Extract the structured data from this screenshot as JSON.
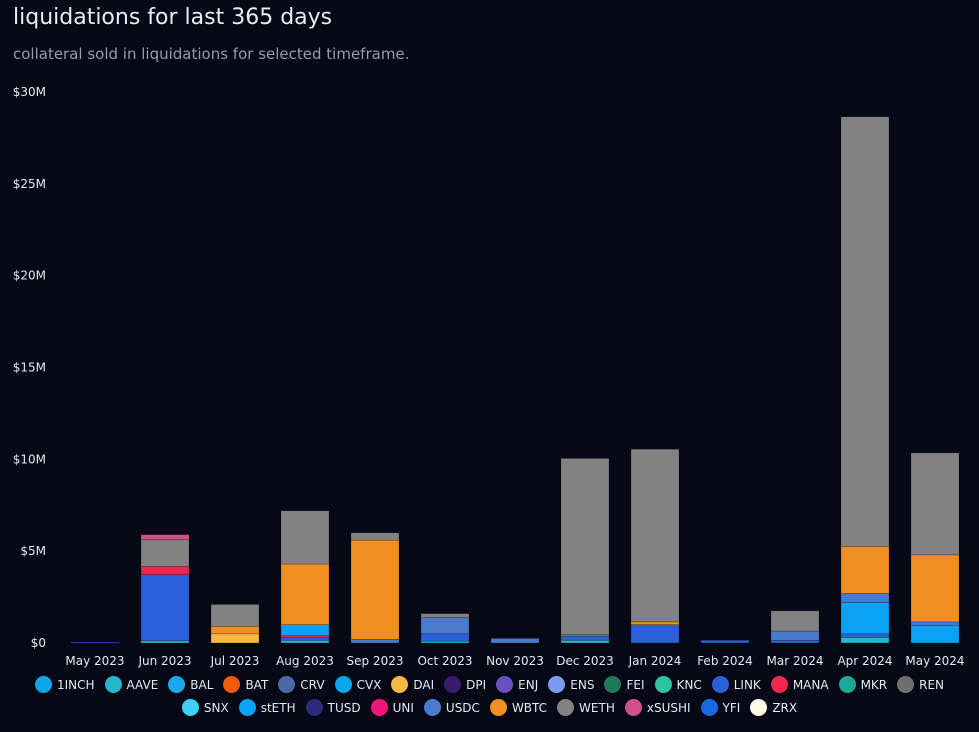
{
  "title": "liquidations for last 365 days",
  "subtitle": "collateral sold in liquidations for selected timeframe.",
  "chart_data": {
    "type": "bar",
    "stacked": true,
    "categories": [
      "May 2023",
      "Jun 2023",
      "Jul 2023",
      "Aug 2023",
      "Sep 2023",
      "Oct 2023",
      "Nov 2023",
      "Dec 2023",
      "Jan 2024",
      "Feb 2024",
      "Mar 2024",
      "Apr 2024",
      "May 2024"
    ],
    "ylim": [
      0,
      30000000
    ],
    "yticks": [
      0,
      5000000,
      10000000,
      15000000,
      20000000,
      25000000,
      30000000
    ],
    "ytick_labels": [
      "$0",
      "$5M",
      "$10M",
      "$15M",
      "$20M",
      "$25M",
      "$30M"
    ],
    "grid": false,
    "legend_position": "bottom",
    "series": [
      {
        "name": "1INCH",
        "color": "#0ea5e9",
        "values": [
          0,
          0,
          0,
          0,
          0,
          0,
          0,
          0,
          0,
          0,
          0,
          0,
          0
        ]
      },
      {
        "name": "AAVE",
        "color": "#22b8c8",
        "values": [
          0,
          120000,
          0,
          150000,
          0,
          100000,
          0,
          150000,
          0,
          0,
          0,
          300000,
          0
        ]
      },
      {
        "name": "BAL",
        "color": "#1aa7ec",
        "values": [
          0,
          0,
          0,
          0,
          0,
          0,
          0,
          0,
          0,
          0,
          0,
          0,
          0
        ]
      },
      {
        "name": "BAT",
        "color": "#f05a0a",
        "values": [
          0,
          0,
          0,
          0,
          0,
          0,
          0,
          0,
          0,
          0,
          0,
          0,
          0
        ]
      },
      {
        "name": "CRV",
        "color": "#4a6aa5",
        "values": [
          0,
          0,
          0,
          0,
          0,
          0,
          0,
          0,
          0,
          0,
          0,
          0,
          0
        ]
      },
      {
        "name": "CVX",
        "color": "#0aa7e8",
        "values": [
          0,
          0,
          0,
          0,
          0,
          0,
          0,
          0,
          0,
          0,
          0,
          0,
          0
        ]
      },
      {
        "name": "DAI",
        "color": "#f5b841",
        "values": [
          0,
          0,
          500000,
          0,
          0,
          0,
          0,
          0,
          0,
          0,
          0,
          0,
          0
        ]
      },
      {
        "name": "DPI",
        "color": "#3a1a6e",
        "values": [
          0,
          0,
          0,
          0,
          0,
          0,
          0,
          0,
          0,
          0,
          0,
          0,
          0
        ]
      },
      {
        "name": "ENJ",
        "color": "#6a4fc2",
        "values": [
          0,
          0,
          0,
          0,
          0,
          0,
          0,
          0,
          0,
          0,
          0,
          0,
          0
        ]
      },
      {
        "name": "ENS",
        "color": "#7a9cf0",
        "values": [
          0,
          0,
          0,
          0,
          0,
          0,
          0,
          0,
          0,
          0,
          0,
          0,
          0
        ]
      },
      {
        "name": "FEI",
        "color": "#1f7a5a",
        "values": [
          0,
          0,
          0,
          0,
          0,
          0,
          0,
          0,
          0,
          0,
          0,
          0,
          0
        ]
      },
      {
        "name": "KNC",
        "color": "#2fc4a0",
        "values": [
          0,
          0,
          0,
          0,
          0,
          0,
          0,
          0,
          0,
          0,
          0,
          0,
          0
        ]
      },
      {
        "name": "LINK",
        "color": "#2b5fd9",
        "values": [
          50000,
          3600000,
          0,
          150000,
          0,
          400000,
          0,
          200000,
          1000000,
          150000,
          150000,
          200000,
          0
        ]
      },
      {
        "name": "MANA",
        "color": "#f0274e",
        "values": [
          0,
          450000,
          0,
          100000,
          0,
          0,
          0,
          0,
          0,
          0,
          0,
          0,
          0
        ]
      },
      {
        "name": "MKR",
        "color": "#1fa896",
        "values": [
          0,
          0,
          0,
          0,
          0,
          0,
          0,
          0,
          0,
          0,
          0,
          0,
          0
        ]
      },
      {
        "name": "REN",
        "color": "#6e6e6e",
        "values": [
          0,
          0,
          0,
          0,
          0,
          0,
          0,
          0,
          0,
          0,
          0,
          0,
          0
        ]
      },
      {
        "name": "SNX",
        "color": "#3fd0f5",
        "values": [
          0,
          0,
          0,
          0,
          0,
          0,
          0,
          0,
          0,
          0,
          0,
          0,
          0
        ]
      },
      {
        "name": "stETH",
        "color": "#0aa2f5",
        "values": [
          0,
          0,
          0,
          600000,
          0,
          0,
          0,
          0,
          0,
          0,
          0,
          1700000,
          950000
        ]
      },
      {
        "name": "TUSD",
        "color": "#2a2a7e",
        "values": [
          0,
          0,
          0,
          0,
          0,
          0,
          0,
          0,
          0,
          0,
          0,
          0,
          0
        ]
      },
      {
        "name": "UNI",
        "color": "#f0157a",
        "values": [
          0,
          0,
          0,
          0,
          0,
          0,
          0,
          0,
          0,
          0,
          0,
          0,
          0
        ]
      },
      {
        "name": "USDC",
        "color": "#4a7ad0",
        "values": [
          0,
          0,
          0,
          0,
          200000,
          900000,
          250000,
          100000,
          0,
          0,
          500000,
          500000,
          200000
        ]
      },
      {
        "name": "WBTC",
        "color": "#f09020",
        "values": [
          0,
          0,
          400000,
          3300000,
          5400000,
          0,
          0,
          0,
          150000,
          0,
          0,
          2550000,
          3650000
        ]
      },
      {
        "name": "WETH",
        "color": "#828282",
        "values": [
          0,
          1450000,
          1200000,
          2900000,
          400000,
          200000,
          0,
          9600000,
          9400000,
          0,
          1100000,
          23400000,
          5550000
        ]
      },
      {
        "name": "xSUSHI",
        "color": "#d0508a",
        "values": [
          0,
          280000,
          0,
          0,
          0,
          0,
          0,
          0,
          0,
          0,
          0,
          0,
          0
        ]
      },
      {
        "name": "YFI",
        "color": "#1a68e0",
        "values": [
          0,
          0,
          0,
          0,
          0,
          0,
          0,
          0,
          0,
          0,
          0,
          0,
          0
        ]
      },
      {
        "name": "ZRX",
        "color": "#fffbe8",
        "values": [
          0,
          0,
          0,
          0,
          0,
          0,
          0,
          0,
          0,
          0,
          0,
          0,
          0
        ]
      }
    ]
  }
}
